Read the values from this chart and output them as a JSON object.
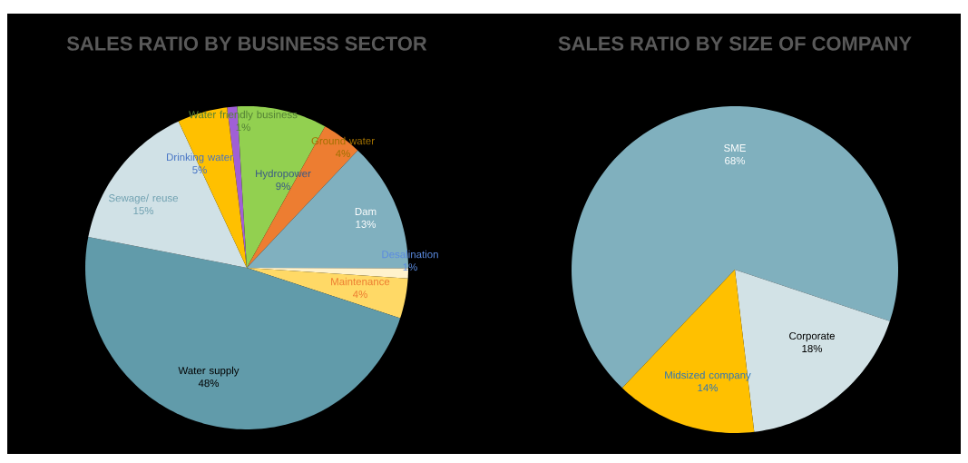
{
  "chart_data": [
    {
      "type": "pie",
      "title": "SALES RATIO BY BUSINESS SECTOR",
      "categories": [
        "Water friendly business",
        "Hydropower",
        "Ground water",
        "Dam",
        "Desalination",
        "Maintenance",
        "Water supply",
        "Sewage/ reuse",
        "Drinking water"
      ],
      "values": [
        1,
        9,
        4,
        13,
        1,
        4,
        48,
        15,
        5
      ],
      "value_labels": [
        "1%",
        "9%",
        "4%",
        "13%",
        "1%",
        "4%",
        "48%",
        "15%",
        "5%"
      ],
      "colors": [
        "#a05fd6",
        "#92d050",
        "#ed7d31",
        "#80b0bf",
        "#fff2cc",
        "#ffd966",
        "#619baa",
        "#d0e1e6",
        "#ffc000"
      ]
    },
    {
      "type": "pie",
      "title": "SALES RATIO BY SIZE OF COMPANY",
      "categories": [
        "SME",
        "Corporate",
        "Midsized company"
      ],
      "values": [
        68,
        18,
        14
      ],
      "value_labels": [
        "68%",
        "18%",
        "14%"
      ],
      "colors": [
        "#80b0be",
        "#d2e2e6",
        "#ffc000"
      ]
    }
  ]
}
